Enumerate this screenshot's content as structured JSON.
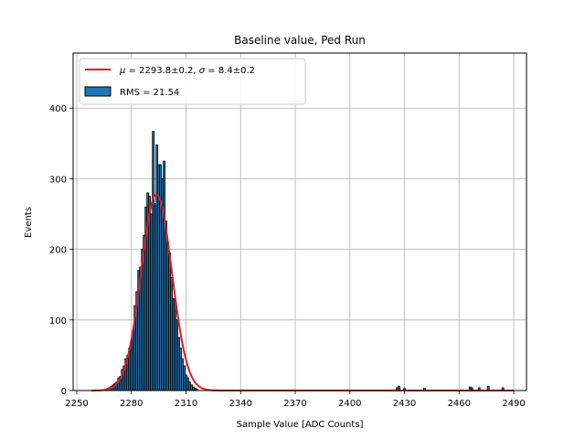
{
  "chart_data": {
    "type": "bar",
    "title": "Baseline value, Ped Run",
    "xlabel": "Sample Value [ADC Counts]",
    "ylabel": "Events",
    "xlim": [
      2248,
      2497
    ],
    "ylim": [
      0,
      478
    ],
    "xticks": [
      2250,
      2280,
      2310,
      2340,
      2370,
      2400,
      2430,
      2460,
      2490
    ],
    "yticks": [
      0,
      100,
      200,
      300,
      400
    ],
    "grid": true,
    "legend_position": "upper-left",
    "bin_width": 1,
    "series": [
      {
        "name": "RMS = 21.54",
        "type": "histogram",
        "color": "#1f77b4",
        "edgecolor": "#000000",
        "bins": [
          [
            2266,
            2
          ],
          [
            2267,
            3
          ],
          [
            2268,
            4
          ],
          [
            2269,
            6
          ],
          [
            2270,
            8
          ],
          [
            2271,
            10
          ],
          [
            2272,
            12
          ],
          [
            2273,
            18
          ],
          [
            2274,
            20
          ],
          [
            2275,
            30
          ],
          [
            2276,
            35
          ],
          [
            2277,
            45
          ],
          [
            2278,
            50
          ],
          [
            2279,
            60
          ],
          [
            2280,
            70
          ],
          [
            2281,
            85
          ],
          [
            2282,
            120
          ],
          [
            2283,
            140
          ],
          [
            2284,
            170
          ],
          [
            2285,
            175
          ],
          [
            2286,
            200
          ],
          [
            2287,
            220
          ],
          [
            2288,
            260
          ],
          [
            2289,
            280
          ],
          [
            2290,
            275
          ],
          [
            2291,
            250
          ],
          [
            2292,
            367
          ],
          [
            2293,
            265
          ],
          [
            2294,
            348
          ],
          [
            2295,
            320
          ],
          [
            2296,
            320
          ],
          [
            2297,
            300
          ],
          [
            2298,
            325
          ],
          [
            2299,
            240
          ],
          [
            2300,
            210
          ],
          [
            2301,
            195
          ],
          [
            2302,
            160
          ],
          [
            2303,
            130
          ],
          [
            2304,
            130
          ],
          [
            2305,
            100
          ],
          [
            2306,
            75
          ],
          [
            2307,
            60
          ],
          [
            2308,
            45
          ],
          [
            2309,
            35
          ],
          [
            2310,
            22
          ],
          [
            2311,
            18
          ],
          [
            2312,
            12
          ],
          [
            2313,
            8
          ],
          [
            2314,
            5
          ],
          [
            2315,
            3
          ],
          [
            2316,
            2
          ],
          [
            2426,
            4
          ],
          [
            2427,
            6
          ],
          [
            2430,
            3
          ],
          [
            2441,
            3
          ],
          [
            2466,
            5
          ],
          [
            2467,
            4
          ],
          [
            2471,
            4
          ],
          [
            2476,
            6
          ],
          [
            2484,
            4
          ]
        ]
      }
    ],
    "fit": {
      "name": "$\\mu=2293.8\\pm0.2$, $\\sigma=8.4\\pm0.2$",
      "type": "gaussian",
      "color": "#e31a1c",
      "amplitude": 278,
      "mu": 2293.8,
      "sigma": 8.4,
      "x_range": [
        2258,
        2490
      ]
    },
    "legend": [
      {
        "kind": "line",
        "label_mu": "μ",
        "label_mid": " = 2293.8±0.2, ",
        "label_sigma": "σ",
        "label_end": " = 8.4±0.2"
      },
      {
        "kind": "patch",
        "label": "RMS = 21.54"
      }
    ]
  }
}
